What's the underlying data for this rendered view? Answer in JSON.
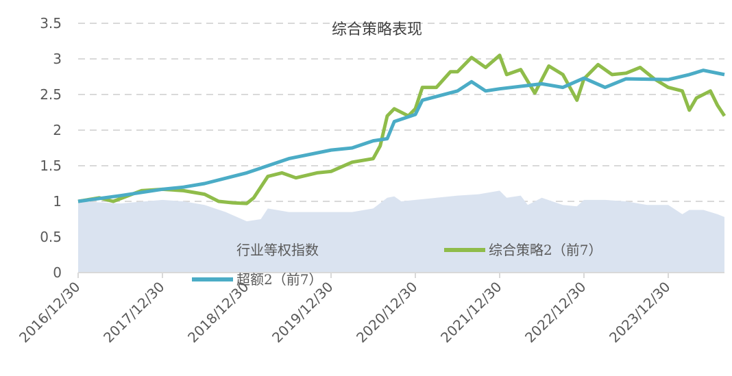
{
  "chart_data": {
    "type": "line",
    "title": "综合策略表现",
    "xlabel": "",
    "ylabel": "",
    "ylim": [
      0,
      3.5
    ],
    "yticks": [
      "0",
      "0.5",
      "1",
      "1.5",
      "2",
      "2.5",
      "3",
      "3.5"
    ],
    "xticks": [
      "2016/12/30",
      "2017/12/30",
      "2018/12/30",
      "2019/12/30",
      "2020/12/30",
      "2021/12/30",
      "2022/12/30",
      "2023/12/30"
    ],
    "grid": true,
    "colors": {
      "area": "#dae3f0",
      "green": "#8fbc4a",
      "blue": "#4bacc6",
      "grid": "#d9d9d9",
      "text": "#595959"
    },
    "series": [
      {
        "name": "行业等权指数",
        "type": "area",
        "color": "#dae3f0",
        "x": [
          "2016-12",
          "2017-06",
          "2017-12",
          "2018-03",
          "2018-06",
          "2018-09",
          "2018-12",
          "2019-02",
          "2019-03",
          "2019-06",
          "2019-12",
          "2020-03",
          "2020-06",
          "2020-08",
          "2020-09",
          "2020-10",
          "2020-12",
          "2021-03",
          "2021-06",
          "2021-09",
          "2021-12",
          "2022-01",
          "2022-03",
          "2022-04",
          "2022-06",
          "2022-09",
          "2022-11",
          "2022-12",
          "2023-03",
          "2023-06",
          "2023-09",
          "2023-12",
          "2024-02",
          "2024-03",
          "2024-05",
          "2024-07",
          "2024-08"
        ],
        "values": [
          1.0,
          0.97,
          1.02,
          1.0,
          0.95,
          0.85,
          0.72,
          0.75,
          0.9,
          0.85,
          0.85,
          0.85,
          0.9,
          1.05,
          1.07,
          1.0,
          1.02,
          1.05,
          1.08,
          1.1,
          1.15,
          1.05,
          1.08,
          0.95,
          1.05,
          0.95,
          0.93,
          1.02,
          1.02,
          1.0,
          0.95,
          0.95,
          0.82,
          0.88,
          0.88,
          0.82,
          0.78
        ]
      },
      {
        "name": "综合策略2（前7）",
        "type": "line",
        "color": "#8fbc4a",
        "x": [
          "2016-12",
          "2017-03",
          "2017-05",
          "2017-09",
          "2017-12",
          "2018-03",
          "2018-06",
          "2018-08",
          "2018-10",
          "2018-12",
          "2019-01",
          "2019-03",
          "2019-05",
          "2019-07",
          "2019-10",
          "2019-12",
          "2020-03",
          "2020-06",
          "2020-07",
          "2020-08",
          "2020-09",
          "2020-11",
          "2020-12",
          "2021-01",
          "2021-03",
          "2021-05",
          "2021-06",
          "2021-08",
          "2021-10",
          "2021-12",
          "2022-01",
          "2022-03",
          "2022-05",
          "2022-07",
          "2022-09",
          "2022-11",
          "2022-12",
          "2023-02",
          "2023-04",
          "2023-06",
          "2023-08",
          "2023-10",
          "2023-12",
          "2024-02",
          "2024-03",
          "2024-04",
          "2024-06",
          "2024-07",
          "2024-08"
        ],
        "values": [
          1.0,
          1.05,
          1.0,
          1.15,
          1.17,
          1.15,
          1.1,
          1.0,
          0.98,
          0.97,
          1.05,
          1.35,
          1.4,
          1.33,
          1.4,
          1.42,
          1.55,
          1.6,
          1.78,
          2.2,
          2.3,
          2.2,
          2.3,
          2.6,
          2.6,
          2.82,
          2.82,
          3.02,
          2.88,
          3.05,
          2.78,
          2.85,
          2.52,
          2.9,
          2.78,
          2.42,
          2.72,
          2.92,
          2.78,
          2.8,
          2.88,
          2.72,
          2.6,
          2.55,
          2.28,
          2.45,
          2.55,
          2.35,
          2.2
        ]
      },
      {
        "name": "超额2（前7）",
        "type": "line",
        "color": "#4bacc6",
        "x": [
          "2016-12",
          "2017-06",
          "2017-12",
          "2018-03",
          "2018-06",
          "2018-12",
          "2019-03",
          "2019-06",
          "2019-12",
          "2020-03",
          "2020-06",
          "2020-08",
          "2020-09",
          "2020-12",
          "2021-01",
          "2021-06",
          "2021-08",
          "2021-10",
          "2021-12",
          "2022-06",
          "2022-09",
          "2022-12",
          "2023-03",
          "2023-06",
          "2023-12",
          "2024-03",
          "2024-05",
          "2024-08"
        ],
        "values": [
          1.0,
          1.08,
          1.17,
          1.2,
          1.25,
          1.4,
          1.5,
          1.6,
          1.72,
          1.75,
          1.85,
          1.88,
          2.12,
          2.22,
          2.42,
          2.55,
          2.68,
          2.55,
          2.58,
          2.65,
          2.6,
          2.73,
          2.6,
          2.72,
          2.71,
          2.78,
          2.84,
          2.78
        ]
      }
    ],
    "legend": {
      "placement": "bottom-inside"
    }
  }
}
